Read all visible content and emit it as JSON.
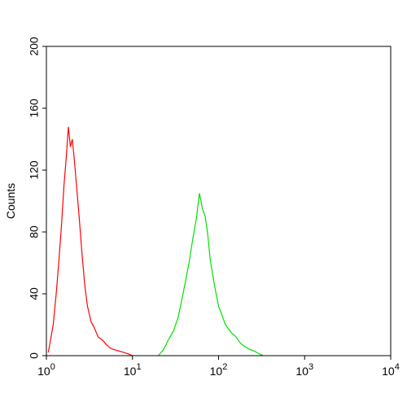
{
  "chart_data": {
    "type": "histogram-overlay",
    "ylabel": "Counts",
    "xscale": "log",
    "xlim": [
      1,
      10000
    ],
    "ylim": [
      0,
      200
    ],
    "xticks": [
      {
        "value": 1,
        "label": "10^0"
      },
      {
        "value": 10,
        "label": "10^1"
      },
      {
        "value": 100,
        "label": "10^2"
      },
      {
        "value": 1000,
        "label": "10^3"
      },
      {
        "value": 10000,
        "label": "10^4"
      }
    ],
    "yticks": [
      0,
      40,
      80,
      120,
      160,
      200
    ],
    "series": [
      {
        "color": "#ff0000",
        "x": [
          1.05,
          1.1,
          1.2,
          1.3,
          1.4,
          1.5,
          1.6,
          1.7,
          1.8,
          1.9,
          2.0,
          2.1,
          2.2,
          2.4,
          2.6,
          2.8,
          3.0,
          3.3,
          3.6,
          4.0,
          4.5,
          5,
          5.5,
          6,
          7,
          8,
          9,
          10
        ],
        "values": [
          2,
          8,
          20,
          40,
          62,
          85,
          110,
          128,
          148,
          135,
          140,
          128,
          115,
          90,
          65,
          45,
          32,
          22,
          18,
          12,
          10,
          7,
          5,
          4,
          3,
          2,
          1,
          0
        ]
      },
      {
        "color": "#00e000",
        "x": [
          20,
          23,
          26,
          30,
          34,
          38,
          42,
          46,
          50,
          55,
          60,
          65,
          70,
          75,
          80,
          90,
          100,
          110,
          120,
          140,
          160,
          180,
          200,
          230,
          260,
          300,
          330
        ],
        "values": [
          0,
          4,
          10,
          16,
          25,
          38,
          50,
          62,
          75,
          88,
          105,
          95,
          90,
          78,
          62,
          45,
          32,
          26,
          20,
          15,
          12,
          8,
          6,
          4,
          3,
          1,
          0
        ]
      }
    ]
  }
}
